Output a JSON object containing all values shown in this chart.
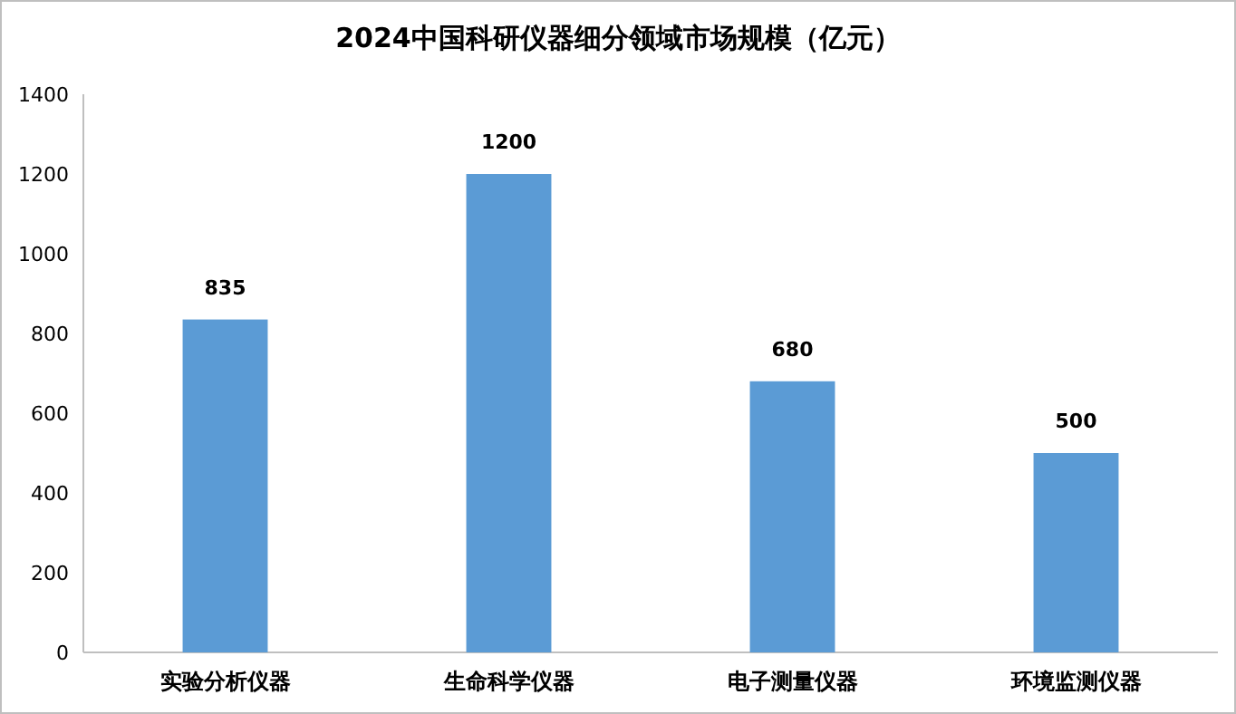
{
  "chart_data": {
    "type": "bar",
    "title": "2024中国科研仪器细分领域市场规模（亿元）",
    "categories": [
      "实验分析仪器",
      "生命科学仪器",
      "电子测量仪器",
      "环境监测仪器"
    ],
    "values": [
      835,
      1200,
      680,
      500
    ],
    "color": "#5b9bd5",
    "ylim": [
      0,
      1400
    ],
    "yticks": [
      0,
      200,
      400,
      600,
      800,
      1000,
      1200,
      1400
    ],
    "data_labels": true
  }
}
